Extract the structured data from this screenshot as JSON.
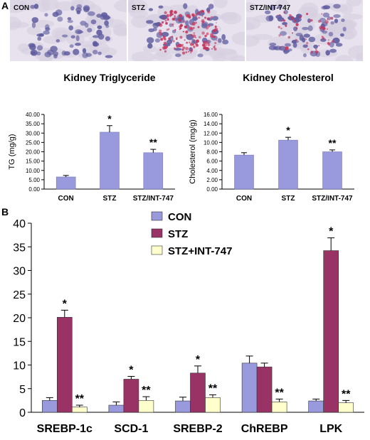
{
  "panel_a_label": "A",
  "panel_b_label": "B",
  "micrographs": [
    {
      "label": "CON"
    },
    {
      "label": "STZ"
    },
    {
      "label": "STZ/INT-747"
    }
  ],
  "colors": {
    "bar_a": "#9999dd",
    "con": "#9999dd",
    "stz": "#993366",
    "stz_int": "#ffffcc",
    "stain_blue": "#5d5a9e",
    "stain_red": "#c8325a",
    "tissue_bg": "#e7e2ee"
  },
  "chart_data": [
    {
      "type": "bar",
      "title": "Kidney Triglyceride",
      "ylabel": "TG  (mg/g)",
      "categories": [
        "CON",
        "STZ",
        "STZ/INT-747"
      ],
      "values": [
        6.5,
        30.5,
        19.5
      ],
      "errors": [
        0.8,
        3.5,
        1.8
      ],
      "annotations": [
        "",
        "*",
        "**"
      ],
      "ylim": [
        0,
        40
      ],
      "yticks": [
        "0.00",
        "5.00",
        "10.00",
        "15.00",
        "20.00",
        "25.00",
        "30.00",
        "35.00",
        "40.00"
      ]
    },
    {
      "type": "bar",
      "title": "Kidney Cholesterol",
      "ylabel": "Cholesterol (mg/g)",
      "categories": [
        "CON",
        "STZ",
        "STZ/INT-747"
      ],
      "values": [
        7.3,
        10.5,
        8.0
      ],
      "errors": [
        0.5,
        0.6,
        0.4
      ],
      "annotations": [
        "",
        "*",
        "**"
      ],
      "ylim": [
        0,
        16
      ],
      "yticks": [
        "0.00",
        "2.00",
        "4.00",
        "6.00",
        "8.00",
        "10.00",
        "12.00",
        "14.00",
        "16.00"
      ]
    },
    {
      "type": "bar",
      "categories": [
        "SREBP-1c",
        "SCD-1",
        "SREBP-2",
        "ChREBP",
        "LPK"
      ],
      "series": [
        {
          "name": "CON",
          "values": [
            2.5,
            1.5,
            2.4,
            10.4,
            2.4
          ],
          "errors": [
            0.6,
            0.7,
            0.8,
            1.5,
            0.4
          ],
          "annotations": [
            "",
            "",
            "",
            "",
            ""
          ]
        },
        {
          "name": "STZ",
          "values": [
            20.1,
            7.0,
            8.3,
            9.6,
            34.2
          ],
          "errors": [
            1.5,
            0.6,
            1.5,
            0.8,
            2.7
          ],
          "annotations": [
            "*",
            "*",
            "*",
            "",
            "*"
          ]
        },
        {
          "name": "STZ+INT-747",
          "values": [
            1.1,
            2.5,
            3.1,
            2.2,
            2.0
          ],
          "errors": [
            0.4,
            0.8,
            0.6,
            0.6,
            0.5
          ],
          "annotations": [
            "**",
            "**",
            "**",
            "**",
            "**"
          ]
        }
      ],
      "ylim": [
        0,
        40
      ],
      "yticks": [
        "0",
        "5",
        "10",
        "15",
        "20",
        "25",
        "30",
        "35",
        "40"
      ],
      "legend_position": "top-center"
    }
  ]
}
